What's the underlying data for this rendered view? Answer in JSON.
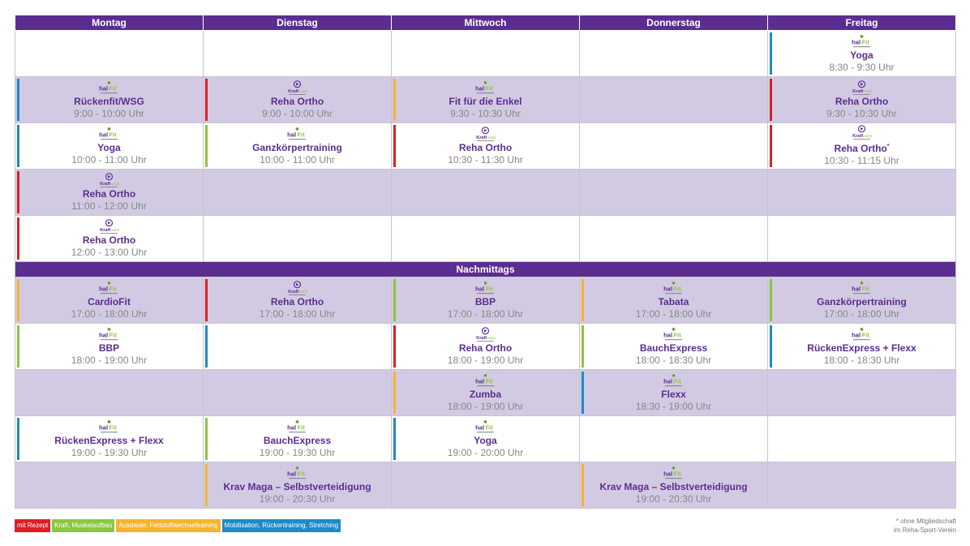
{
  "days": [
    "Montag",
    "Dienstag",
    "Mittwoch",
    "Donnerstag",
    "Freitag"
  ],
  "divider": "Nachmittags",
  "colors": {
    "header": "#5c2d91",
    "red": "#dc1f26",
    "green": "#8dc63f",
    "orange": "#f6b332",
    "blue": "#1e8ac8",
    "row_alt": "#d2cae3"
  },
  "logos": {
    "halfit": "halfit-logo",
    "kraftwerk": "kraftwerk-logo"
  },
  "morning": [
    [
      null,
      null,
      null,
      null,
      {
        "name": "Yoga",
        "time": "8:30 - 9:30 Uhr",
        "cat": "blue",
        "logo": "halfit"
      }
    ],
    [
      {
        "name": "Rückenfit/WSG",
        "time": "9:00 - 10:00 Uhr",
        "cat": "blue",
        "logo": "halfit"
      },
      {
        "name": "Reha Ortho",
        "time": "9:00 - 10:00 Uhr",
        "cat": "red",
        "logo": "kraftwerk"
      },
      {
        "name": "Fit für die Enkel",
        "time": "9:30 - 10:30 Uhr",
        "cat": "orange",
        "logo": "halfit"
      },
      null,
      {
        "name": "Reha Ortho",
        "time": "9:30 - 10:30 Uhr",
        "cat": "red",
        "logo": "kraftwerk"
      }
    ],
    [
      {
        "name": "Yoga",
        "time": "10:00 - 11:00 Uhr",
        "cat": "blue",
        "logo": "halfit"
      },
      {
        "name": "Ganzkörpertraining",
        "time": "10:00 - 11:00 Uhr",
        "cat": "green",
        "logo": "halfit"
      },
      {
        "name": "Reha Ortho",
        "time": "10:30 - 11:30 Uhr",
        "cat": "red",
        "logo": "kraftwerk"
      },
      null,
      {
        "name": "Reha Ortho",
        "time": "10:30 - 11:15 Uhr",
        "cat": "red",
        "logo": "kraftwerk",
        "star": "*"
      }
    ],
    [
      {
        "name": "Reha Ortho",
        "time": "11:00 - 12:00 Uhr",
        "cat": "red",
        "logo": "kraftwerk"
      },
      null,
      null,
      null,
      null
    ],
    [
      {
        "name": "Reha Ortho",
        "time": "12:00 - 13:00 Uhr",
        "cat": "red",
        "logo": "kraftwerk"
      },
      null,
      null,
      null,
      null
    ]
  ],
  "afternoon": [
    [
      {
        "name": "CardioFit",
        "time": "17:00 - 18:00 Uhr",
        "cat": "orange",
        "logo": "halfit"
      },
      {
        "name": "Reha Ortho",
        "time": "17:00 - 18:00 Uhr",
        "cat": "red",
        "logo": "kraftwerk"
      },
      {
        "name": "BBP",
        "time": "17:00 - 18:00 Uhr",
        "cat": "green",
        "logo": "halfit"
      },
      {
        "name": "Tabata",
        "time": "17:00 - 18:00 Uhr",
        "cat": "orange",
        "logo": "halfit"
      },
      {
        "name": "Ganzkörpertraining",
        "time": "17:00 - 18:00 Uhr",
        "cat": "green",
        "logo": "halfit"
      }
    ],
    [
      {
        "name": "BBP",
        "time": "18:00 - 19:00 Uhr",
        "cat": "green",
        "logo": "halfit"
      },
      {
        "bar_only": "blue"
      },
      {
        "name": "Reha Ortho",
        "time": "18:00 - 19:00 Uhr",
        "cat": "red",
        "logo": "kraftwerk"
      },
      {
        "name": "BauchExpress",
        "time": "18:00 - 18:30 Uhr",
        "cat": "green",
        "logo": "halfit"
      },
      {
        "name": "RückenExpress + Flexx",
        "time": "18:00 - 18:30 Uhr",
        "cat": "blue",
        "logo": "halfit"
      }
    ],
    [
      null,
      null,
      {
        "name": "Zumba",
        "time": "18:00 - 19:00 Uhr",
        "cat": "orange",
        "logo": "halfit"
      },
      {
        "name": "Flexx",
        "time": "18:30 - 19:00 Uhr",
        "cat": "blue",
        "logo": "halfit"
      },
      null
    ],
    [
      {
        "name": "RückenExpress + Flexx",
        "time": "19:00 - 19:30 Uhr",
        "cat": "blue",
        "logo": "halfit"
      },
      {
        "name": "BauchExpress",
        "time": "19:00 - 19:30 Uhr",
        "cat": "green",
        "logo": "halfit"
      },
      {
        "name": "Yoga",
        "time": "19:00 - 20:00 Uhr",
        "cat": "blue",
        "logo": "halfit"
      },
      null,
      null
    ],
    [
      null,
      {
        "name": "Krav Maga – Selbstverteidigung",
        "time": "19:00 - 20:30 Uhr",
        "cat": "orange",
        "logo": "halfit"
      },
      null,
      {
        "name": "Krav Maga – Selbstverteidigung",
        "time": "19:00 - 20:30 Uhr",
        "cat": "orange",
        "logo": "halfit"
      },
      null
    ]
  ],
  "legend": [
    {
      "label": "mit Rezept",
      "cat": "red"
    },
    {
      "label": "Kraft, Muskelaufbau",
      "cat": "green"
    },
    {
      "label": "Ausdauer, Fettstoffwechseltraining",
      "cat": "orange"
    },
    {
      "label": "Mobilisation, Rückentraining, Stretching",
      "cat": "blue"
    }
  ],
  "footnote": [
    "* ohne Mitgliedschaft",
    "im Reha-Sport-Verein"
  ]
}
